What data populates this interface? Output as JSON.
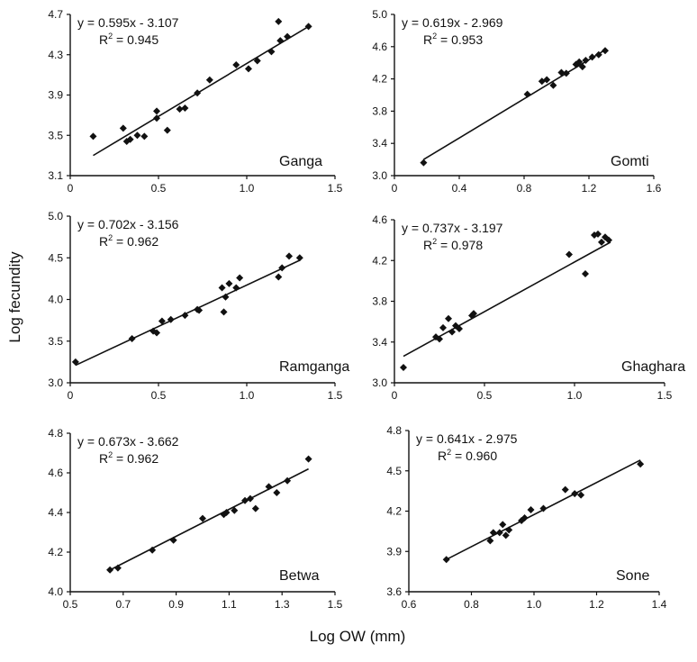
{
  "figure": {
    "xlabel": "Log OW (mm)",
    "ylabel": "Log fecundity"
  },
  "chart_data": [
    {
      "type": "scatter",
      "title": "Ganga",
      "equation": "y = 0.595x - 3.107",
      "r2_label": "R",
      "r2_value": " = 0.945",
      "xlim": [
        0,
        1.5
      ],
      "ylim": [
        3.1,
        4.7
      ],
      "xticks": [
        0,
        0.5,
        1.0,
        1.5
      ],
      "xtick_labels": [
        "0",
        "0.5",
        "1.0",
        "1.5"
      ],
      "yticks": [
        3.1,
        3.5,
        3.9,
        4.3,
        4.7
      ],
      "ytick_labels": [
        "3.1",
        "3.5",
        "3.9",
        "4.3",
        "4.7"
      ],
      "trend": {
        "x": [
          0.13,
          1.35
        ],
        "y": [
          3.3,
          4.58
        ]
      },
      "points": [
        [
          0.13,
          3.49
        ],
        [
          0.3,
          3.57
        ],
        [
          0.32,
          3.44
        ],
        [
          0.34,
          3.46
        ],
        [
          0.38,
          3.5
        ],
        [
          0.42,
          3.49
        ],
        [
          0.49,
          3.67
        ],
        [
          0.49,
          3.74
        ],
        [
          0.55,
          3.55
        ],
        [
          0.62,
          3.76
        ],
        [
          0.65,
          3.77
        ],
        [
          0.72,
          3.92
        ],
        [
          0.79,
          4.05
        ],
        [
          0.94,
          4.2
        ],
        [
          1.01,
          4.16
        ],
        [
          1.06,
          4.24
        ],
        [
          1.14,
          4.33
        ],
        [
          1.18,
          4.63
        ],
        [
          1.19,
          4.44
        ],
        [
          1.23,
          4.48
        ],
        [
          1.35,
          4.58
        ]
      ]
    },
    {
      "type": "scatter",
      "title": "Gomti",
      "equation": "y = 0.619x - 2.969",
      "r2_label": "R",
      "r2_value": " = 0.953",
      "xlim": [
        0,
        1.6
      ],
      "ylim": [
        3.0,
        5.0
      ],
      "xticks": [
        0,
        0.4,
        0.8,
        1.2,
        1.6
      ],
      "xtick_labels": [
        "0",
        "0.4",
        "0.8",
        "1.2",
        "1.6"
      ],
      "yticks": [
        3.0,
        3.4,
        3.8,
        4.2,
        4.6,
        5.0
      ],
      "ytick_labels": [
        "3.0",
        "3.4",
        "3.8",
        "4.2",
        "4.6",
        "5.0"
      ],
      "trend": {
        "x": [
          0.18,
          1.3
        ],
        "y": [
          3.2,
          4.56
        ]
      },
      "points": [
        [
          0.18,
          3.16
        ],
        [
          0.82,
          4.01
        ],
        [
          0.91,
          4.17
        ],
        [
          0.94,
          4.19
        ],
        [
          0.98,
          4.12
        ],
        [
          1.03,
          4.28
        ],
        [
          1.06,
          4.27
        ],
        [
          1.12,
          4.38
        ],
        [
          1.14,
          4.41
        ],
        [
          1.16,
          4.35
        ],
        [
          1.18,
          4.43
        ],
        [
          1.22,
          4.47
        ],
        [
          1.26,
          4.5
        ],
        [
          1.3,
          4.55
        ]
      ]
    },
    {
      "type": "scatter",
      "title": "Ramganga",
      "equation": "y = 0.702x - 3.156",
      "r2_label": "R",
      "r2_value": " = 0.962",
      "xlim": [
        0,
        1.5
      ],
      "ylim": [
        3.0,
        5.0
      ],
      "xticks": [
        0,
        0.5,
        1.0,
        1.5
      ],
      "xtick_labels": [
        "0",
        "0.5",
        "1.0",
        "1.5"
      ],
      "yticks": [
        3.0,
        3.5,
        4.0,
        4.5,
        5.0
      ],
      "ytick_labels": [
        "3.0",
        "3.5",
        "4.0",
        "4.5",
        "5.0"
      ],
      "trend": {
        "x": [
          0.03,
          1.3
        ],
        "y": [
          3.21,
          4.47
        ]
      },
      "points": [
        [
          0.03,
          3.25
        ],
        [
          0.35,
          3.53
        ],
        [
          0.47,
          3.62
        ],
        [
          0.49,
          3.6
        ],
        [
          0.52,
          3.74
        ],
        [
          0.57,
          3.76
        ],
        [
          0.65,
          3.81
        ],
        [
          0.72,
          3.88
        ],
        [
          0.73,
          3.87
        ],
        [
          0.86,
          4.14
        ],
        [
          0.87,
          3.85
        ],
        [
          0.88,
          4.03
        ],
        [
          0.9,
          4.19
        ],
        [
          0.94,
          4.14
        ],
        [
          0.96,
          4.26
        ],
        [
          1.18,
          4.27
        ],
        [
          1.2,
          4.38
        ],
        [
          1.24,
          4.52
        ],
        [
          1.3,
          4.5
        ]
      ]
    },
    {
      "type": "scatter",
      "title": "Ghaghara",
      "equation": "y = 0.737x - 3.197",
      "r2_label": "R",
      "r2_value": " = 0.978",
      "xlim": [
        0,
        1.5
      ],
      "ylim": [
        3.0,
        4.6
      ],
      "xticks": [
        0,
        0.5,
        1.0,
        1.5
      ],
      "xtick_labels": [
        "0",
        "0.5",
        "1.0",
        "1.5"
      ],
      "yticks": [
        3.0,
        3.4,
        3.8,
        4.2,
        4.6
      ],
      "ytick_labels": [
        "3.0",
        "3.4",
        "3.8",
        "4.2",
        "4.6"
      ],
      "trend": {
        "x": [
          0.05,
          1.2
        ],
        "y": [
          3.26,
          4.38
        ]
      },
      "points": [
        [
          0.05,
          3.15
        ],
        [
          0.23,
          3.45
        ],
        [
          0.25,
          3.43
        ],
        [
          0.27,
          3.54
        ],
        [
          0.3,
          3.63
        ],
        [
          0.32,
          3.5
        ],
        [
          0.34,
          3.56
        ],
        [
          0.36,
          3.53
        ],
        [
          0.43,
          3.66
        ],
        [
          0.44,
          3.68
        ],
        [
          0.97,
          4.26
        ],
        [
          1.06,
          4.07
        ],
        [
          1.11,
          4.45
        ],
        [
          1.13,
          4.46
        ],
        [
          1.15,
          4.38
        ],
        [
          1.17,
          4.43
        ],
        [
          1.19,
          4.4
        ]
      ]
    },
    {
      "type": "scatter",
      "title": "Betwa",
      "equation": "y = 0.673x - 3.662",
      "r2_label": "R",
      "r2_value": " = 0.962",
      "xlim": [
        0.5,
        1.5
      ],
      "ylim": [
        4.0,
        4.8
      ],
      "xticks": [
        0.5,
        0.7,
        0.9,
        1.1,
        1.3,
        1.5
      ],
      "xtick_labels": [
        "0.5",
        "0.7",
        "0.9",
        "1.1",
        "1.3",
        "1.5"
      ],
      "yticks": [
        4.0,
        4.2,
        4.4,
        4.6,
        4.8
      ],
      "ytick_labels": [
        "4.0",
        "4.2",
        "4.4",
        "4.6",
        "4.8"
      ],
      "trend": {
        "x": [
          0.65,
          1.4
        ],
        "y": [
          4.11,
          4.62
        ]
      },
      "points": [
        [
          0.65,
          4.11
        ],
        [
          0.68,
          4.12
        ],
        [
          0.81,
          4.21
        ],
        [
          0.89,
          4.26
        ],
        [
          1.0,
          4.37
        ],
        [
          1.08,
          4.39
        ],
        [
          1.09,
          4.4
        ],
        [
          1.12,
          4.41
        ],
        [
          1.16,
          4.46
        ],
        [
          1.18,
          4.47
        ],
        [
          1.2,
          4.42
        ],
        [
          1.25,
          4.53
        ],
        [
          1.28,
          4.5
        ],
        [
          1.32,
          4.56
        ],
        [
          1.4,
          4.67
        ]
      ]
    },
    {
      "type": "scatter",
      "title": "Sone",
      "equation": "y = 0.641x - 2.975",
      "r2_label": "R",
      "r2_value": " = 0.960",
      "xlim": [
        0.6,
        1.4
      ],
      "ylim": [
        3.6,
        4.8
      ],
      "xticks": [
        0.6,
        0.8,
        1.0,
        1.2,
        1.4
      ],
      "xtick_labels": [
        "0.6",
        "0.8",
        "1.0",
        "1.2",
        "1.4"
      ],
      "yticks": [
        3.6,
        3.9,
        4.2,
        4.5,
        4.8
      ],
      "ytick_labels": [
        "3.6",
        "3.9",
        "4.2",
        "4.5",
        "4.8"
      ],
      "trend": {
        "x": [
          0.72,
          1.34
        ],
        "y": [
          3.84,
          4.58
        ]
      },
      "points": [
        [
          0.72,
          3.84
        ],
        [
          0.86,
          3.98
        ],
        [
          0.87,
          4.04
        ],
        [
          0.89,
          4.04
        ],
        [
          0.9,
          4.1
        ],
        [
          0.91,
          4.02
        ],
        [
          0.92,
          4.06
        ],
        [
          0.96,
          4.13
        ],
        [
          0.97,
          4.15
        ],
        [
          0.99,
          4.21
        ],
        [
          1.03,
          4.22
        ],
        [
          1.1,
          4.36
        ],
        [
          1.13,
          4.33
        ],
        [
          1.15,
          4.32
        ],
        [
          1.34,
          4.55
        ]
      ]
    }
  ]
}
